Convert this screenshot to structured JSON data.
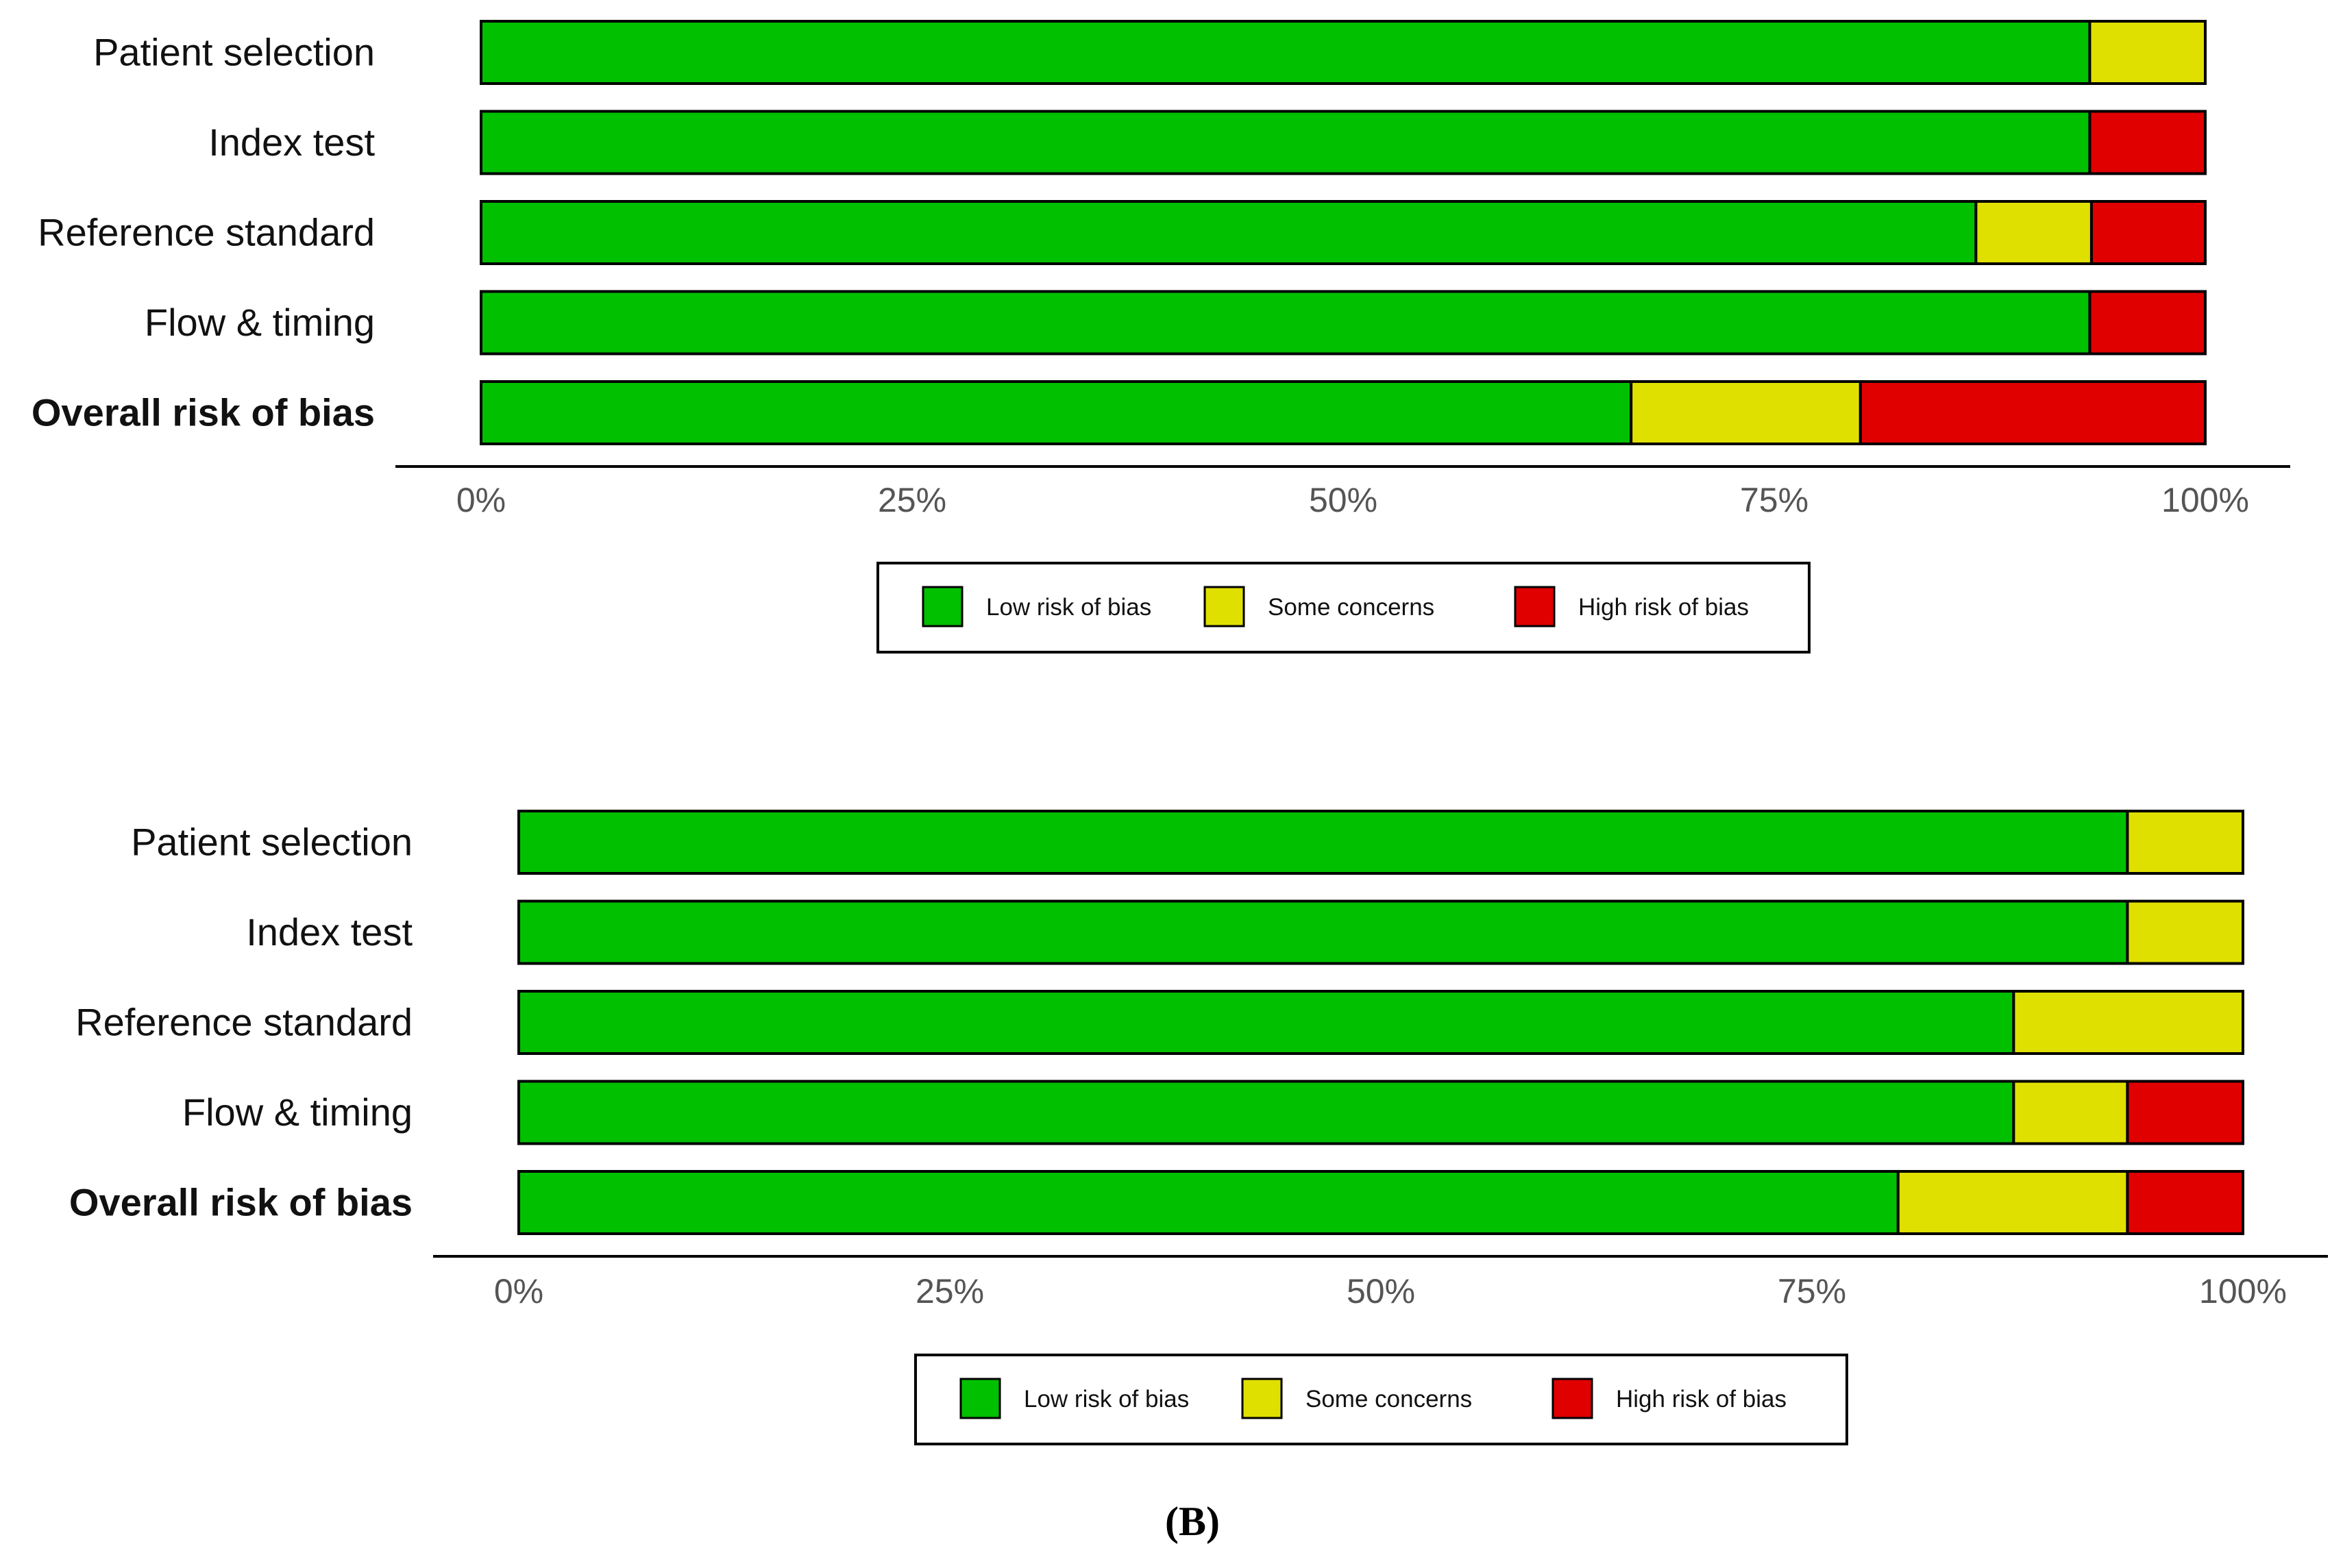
{
  "chart_data": [
    {
      "type": "bar",
      "orientation": "horizontal",
      "stacked": true,
      "categories": [
        "Patient selection",
        "Index test",
        "Reference standard",
        "Flow & timing",
        "Overall risk of bias"
      ],
      "bold_categories": [
        "Overall risk of bias"
      ],
      "series": [
        {
          "name": "Low risk of bias",
          "color": "#00c000",
          "values": [
            93.3,
            93.3,
            86.7,
            93.3,
            66.7
          ]
        },
        {
          "name": "Some concerns",
          "color": "#e0e000",
          "values": [
            6.7,
            0,
            6.7,
            0,
            13.3
          ]
        },
        {
          "name": "High risk of bias",
          "color": "#e00000",
          "values": [
            0,
            6.7,
            6.6,
            6.7,
            20.0
          ]
        }
      ],
      "xlim": [
        0,
        100
      ],
      "xticks": [
        0,
        25,
        50,
        75,
        100
      ],
      "xtick_labels": [
        "0%",
        "25%",
        "50%",
        "75%",
        "100%"
      ],
      "legend": [
        "Low risk of bias",
        "Some concerns",
        "High risk of bias"
      ],
      "legend_position": "bottom"
    },
    {
      "type": "bar",
      "orientation": "horizontal",
      "stacked": true,
      "categories": [
        "Patient selection",
        "Index test",
        "Reference standard",
        "Flow & timing",
        "Overall risk of bias"
      ],
      "bold_categories": [
        "Overall risk of bias"
      ],
      "series": [
        {
          "name": "Low risk of bias",
          "color": "#00c000",
          "values": [
            93.3,
            93.3,
            86.7,
            86.7,
            80.0
          ]
        },
        {
          "name": "Some concerns",
          "color": "#e0e000",
          "values": [
            6.7,
            6.7,
            13.3,
            6.6,
            13.3
          ]
        },
        {
          "name": "High risk of bias",
          "color": "#e00000",
          "values": [
            0,
            0,
            0,
            6.7,
            6.7
          ]
        }
      ],
      "xlim": [
        0,
        100
      ],
      "xticks": [
        0,
        25,
        50,
        75,
        100
      ],
      "xtick_labels": [
        "0%",
        "25%",
        "50%",
        "75%",
        "100%"
      ],
      "legend": [
        "Low risk of bias",
        "Some concerns",
        "High risk of bias"
      ],
      "legend_position": "bottom",
      "caption": "(B)"
    }
  ]
}
